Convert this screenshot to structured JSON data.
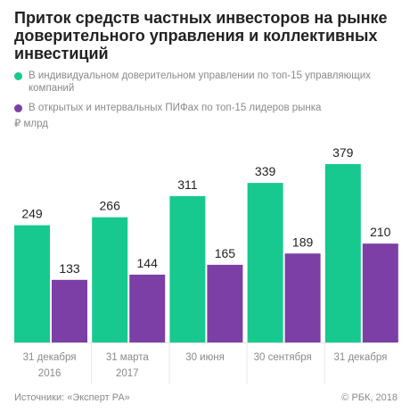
{
  "title": "Приток средств частных инвесторов на рынке доверительного управления и коллективных инвестиций",
  "legend": [
    {
      "label": "В индивидуальном доверительном управлении по топ-15 управляющих компаний",
      "color": "#17c98f"
    },
    {
      "label": "В открытых и интервальных ПИФах по топ-15 лидеров рынка",
      "color": "#7b3fa6"
    }
  ],
  "unit": "₽ млрд",
  "source": "Источники: «Эксперт РА»",
  "credit": "© РБК, 2018",
  "chart_data": {
    "type": "bar",
    "title": "Приток средств частных инвесторов на рынке доверительного управления и коллективных инвестиций",
    "ylabel": "₽ млрд",
    "ylim": [
      0,
      390
    ],
    "grid": false,
    "legend_position": "top-left",
    "categories": [
      [
        "31 декабря",
        "2016"
      ],
      [
        "31 марта",
        "2017"
      ],
      [
        "30 июня",
        ""
      ],
      [
        "30 сентября",
        ""
      ],
      [
        "31 декабря",
        ""
      ]
    ],
    "series": [
      {
        "name": "В индивидуальном доверительном управлении по топ-15 управляющих компаний",
        "color": "#17c98f",
        "values": [
          249,
          266,
          311,
          339,
          379
        ]
      },
      {
        "name": "В открытых и интервальных ПИФах по топ-15 лидеров рынка",
        "color": "#7b3fa6",
        "values": [
          133,
          144,
          165,
          189,
          210
        ]
      }
    ]
  }
}
